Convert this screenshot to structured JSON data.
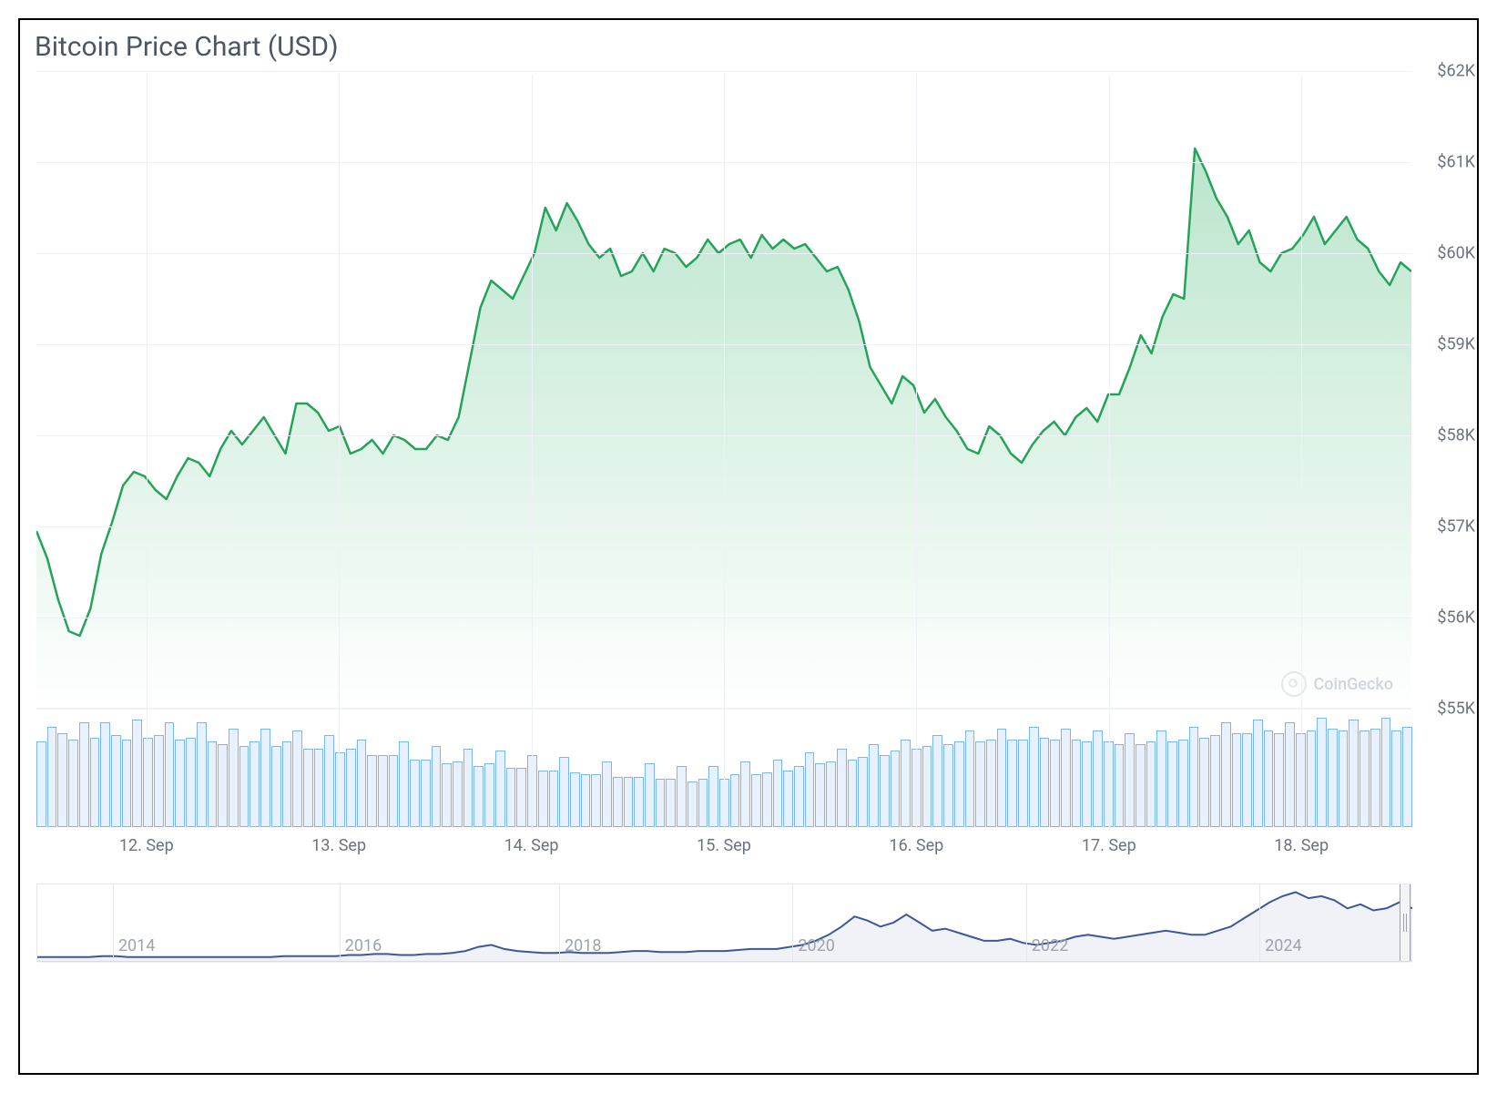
{
  "title": "Bitcoin Price Chart (USD)",
  "watermark": "CoinGecko",
  "price_chart": {
    "type": "area",
    "line_color": "#25a35a",
    "line_width": 2.5,
    "fill_top_color": "rgba(83,190,127,0.40)",
    "fill_bottom_color": "rgba(83,190,127,0.0)",
    "background_color": "#ffffff",
    "grid_color": "#eef2f6",
    "y_axis": {
      "min": 55000,
      "max": 62000,
      "step": 1000,
      "labels": [
        "$55K",
        "$56K",
        "$57K",
        "$58K",
        "$59K",
        "$60K",
        "$61K",
        "$62K"
      ],
      "label_color": "#6b7280",
      "label_fontsize": 18
    },
    "x_axis": {
      "labels": [
        "12. Sep",
        "13. Sep",
        "14. Sep",
        "15. Sep",
        "16. Sep",
        "17. Sep",
        "18. Sep"
      ],
      "label_color": "#6b7280",
      "label_fontsize": 18,
      "label_positions_pct": [
        8,
        22,
        36,
        50,
        64,
        78,
        92
      ]
    },
    "values": [
      56950,
      56650,
      56200,
      55850,
      55800,
      56100,
      56700,
      57050,
      57450,
      57600,
      57550,
      57400,
      57300,
      57550,
      57750,
      57700,
      57550,
      57850,
      58050,
      57900,
      58050,
      58200,
      58000,
      57800,
      58350,
      58350,
      58250,
      58050,
      58100,
      57800,
      57850,
      57950,
      57800,
      58000,
      57950,
      57850,
      57850,
      58000,
      57950,
      58200,
      58800,
      59400,
      59700,
      59600,
      59500,
      59750,
      60000,
      60500,
      60250,
      60550,
      60350,
      60100,
      59950,
      60050,
      59750,
      59800,
      60000,
      59800,
      60050,
      60000,
      59850,
      59950,
      60150,
      60000,
      60100,
      60150,
      59950,
      60200,
      60050,
      60150,
      60050,
      60100,
      59950,
      59800,
      59850,
      59600,
      59250,
      58750,
      58550,
      58350,
      58650,
      58550,
      58250,
      58400,
      58200,
      58050,
      57850,
      57800,
      58100,
      58000,
      57800,
      57700,
      57900,
      58050,
      58150,
      58000,
      58200,
      58300,
      58150,
      58450,
      58450,
      58750,
      59100,
      58900,
      59300,
      59550,
      59500,
      61150,
      60900,
      60600,
      60400,
      60100,
      60250,
      59900,
      59800,
      60000,
      60050,
      60200,
      60400,
      60100,
      60250,
      60400,
      60150,
      60050,
      59800,
      59650,
      59900,
      59800
    ]
  },
  "volume_chart": {
    "type": "bar",
    "bar_fill": "#e8f1ff",
    "bar_border": "#7ab6f3",
    "bar_border_width": 1,
    "values": [
      78,
      92,
      86,
      80,
      96,
      82,
      96,
      84,
      80,
      98,
      82,
      84,
      96,
      80,
      82,
      96,
      78,
      76,
      90,
      74,
      78,
      90,
      74,
      78,
      88,
      72,
      72,
      84,
      68,
      72,
      80,
      66,
      66,
      66,
      78,
      62,
      62,
      74,
      58,
      60,
      72,
      56,
      58,
      70,
      54,
      54,
      66,
      52,
      52,
      64,
      50,
      48,
      48,
      60,
      46,
      46,
      46,
      58,
      44,
      44,
      56,
      42,
      44,
      56,
      44,
      48,
      60,
      48,
      50,
      62,
      52,
      56,
      68,
      58,
      60,
      72,
      62,
      64,
      76,
      66,
      70,
      80,
      72,
      74,
      84,
      76,
      78,
      88,
      78,
      80,
      90,
      80,
      80,
      92,
      82,
      80,
      90,
      80,
      78,
      88,
      78,
      76,
      86,
      76,
      78,
      88,
      78,
      80,
      92,
      82,
      84,
      96,
      86,
      86,
      98,
      88,
      86,
      96,
      86,
      88,
      100,
      90,
      88,
      98,
      88,
      90,
      100,
      88,
      92
    ]
  },
  "navigator": {
    "type": "line",
    "line_color": "#3b5998",
    "line_width": 2,
    "background": "#ffffff",
    "grid_color": "#e5e7eb",
    "labels": [
      "2014",
      "2016",
      "2018",
      "2020",
      "2022",
      "2024"
    ],
    "label_positions_pct": [
      5.5,
      22,
      38,
      55,
      72,
      89
    ],
    "handle_bg": "#f3f4f6",
    "handle_border": "#9ca3af",
    "values": [
      2,
      2,
      2,
      2,
      2,
      3,
      3,
      2,
      2,
      2,
      2,
      2,
      2,
      2,
      2,
      2,
      2,
      2,
      2,
      3,
      3,
      3,
      3,
      3,
      4,
      4,
      5,
      5,
      4,
      4,
      5,
      5,
      6,
      8,
      12,
      14,
      10,
      8,
      7,
      6,
      6,
      7,
      6,
      6,
      6,
      7,
      8,
      8,
      7,
      7,
      7,
      8,
      8,
      8,
      9,
      10,
      10,
      10,
      12,
      14,
      18,
      24,
      32,
      42,
      38,
      32,
      36,
      44,
      36,
      28,
      30,
      26,
      22,
      18,
      18,
      20,
      16,
      14,
      16,
      18,
      22,
      24,
      22,
      20,
      22,
      24,
      26,
      28,
      26,
      24,
      24,
      28,
      32,
      40,
      48,
      56,
      62,
      66,
      60,
      62,
      58,
      50,
      54,
      48,
      50,
      56,
      50
    ],
    "y_max": 70
  }
}
